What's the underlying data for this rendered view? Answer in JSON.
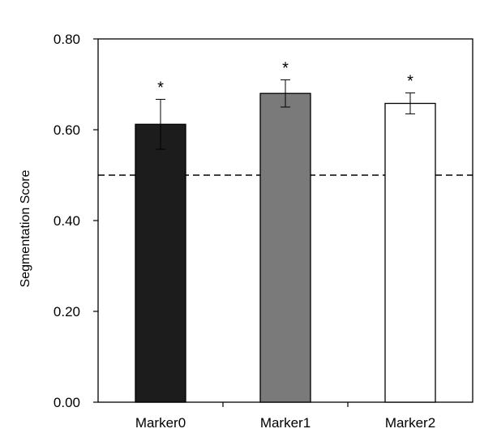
{
  "chart_data": {
    "type": "bar",
    "categories": [
      "Marker0",
      "Marker1",
      "Marker2"
    ],
    "values": [
      0.612,
      0.68,
      0.658
    ],
    "errors": [
      0.055,
      0.03,
      0.023
    ],
    "annotations": [
      "*",
      "*",
      "*"
    ],
    "bar_colors": [
      "#1c1c1c",
      "#7a7a7a",
      "#ffffff"
    ],
    "ylabel": "Segmentation Score",
    "xlabel": "",
    "ylim": [
      0,
      0.8
    ],
    "yticks": [
      0,
      0.2,
      0.4,
      0.6,
      0.8
    ],
    "ytick_labels": [
      "0.00",
      "0.20",
      "0.40",
      "0.60",
      "0.80"
    ],
    "reference_line": 0.5,
    "grid": false
  }
}
